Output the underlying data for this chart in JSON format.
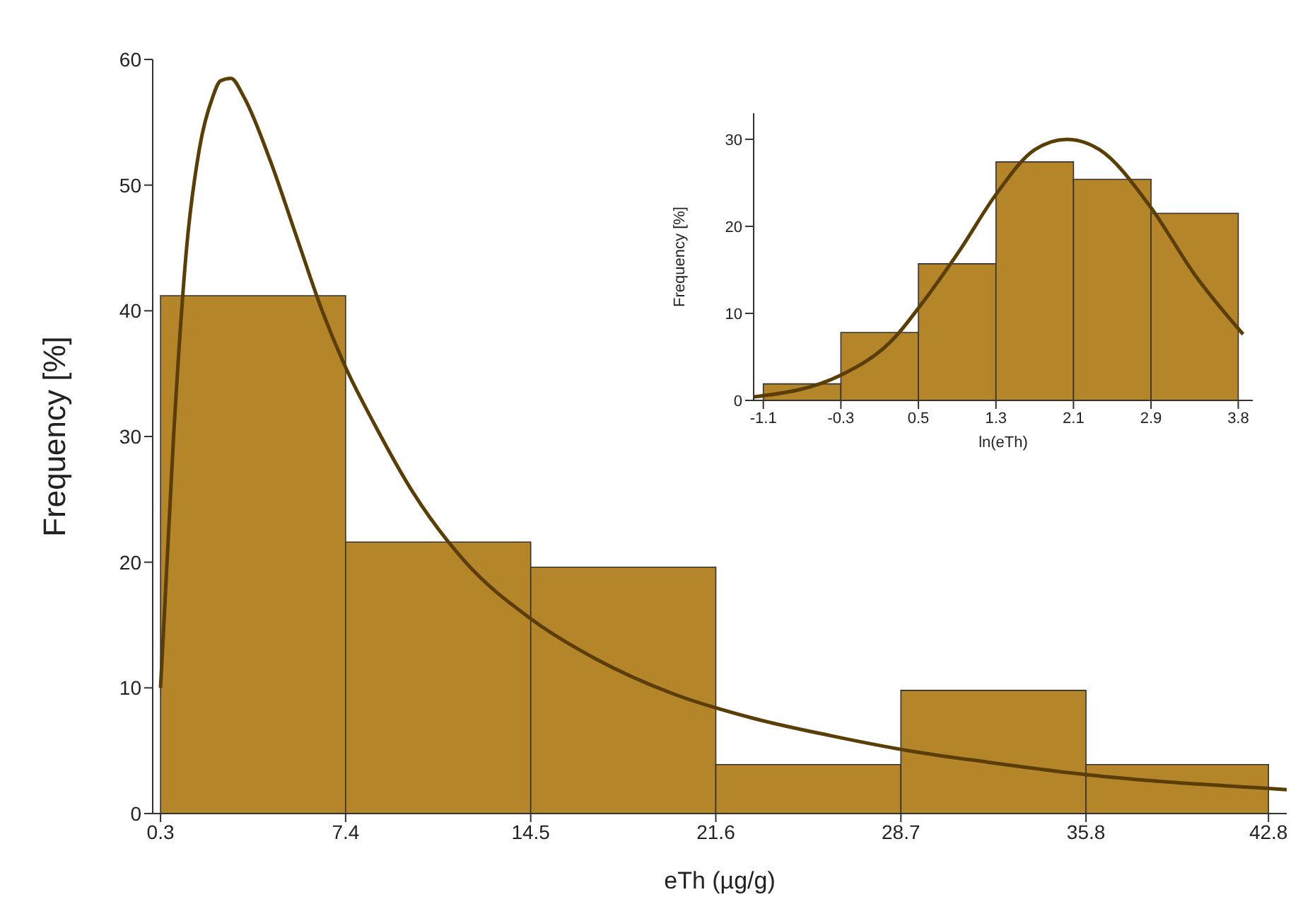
{
  "chart_data": [
    {
      "type": "histogram",
      "xlabel": "eTh (µg/g)",
      "ylabel": "Frequency [%]",
      "bins": [
        0.3,
        7.4,
        14.5,
        21.6,
        28.7,
        35.8,
        42.8
      ],
      "values": [
        41.2,
        21.6,
        19.6,
        3.9,
        9.8,
        3.9
      ],
      "color": "#b5852a",
      "xlim": [
        0,
        43.5
      ],
      "ylim": [
        0,
        60
      ],
      "xticks": [
        0.3,
        7.4,
        14.5,
        21.6,
        28.7,
        35.8,
        42.8
      ],
      "yticks": [
        0,
        10,
        20,
        30,
        40,
        50,
        60
      ],
      "series": [
        {
          "type": "line",
          "color": "#5a3e05",
          "x": [
            0.3,
            0.8,
            1.3,
            1.8,
            2.3,
            2.6,
            3.0,
            3.5,
            4.5,
            5.5,
            6.5,
            7.4,
            8.5,
            10,
            12,
            14.5,
            17,
            20,
            23,
            26,
            29,
            32,
            35.8,
            39,
            42.8,
            43.5
          ],
          "values": [
            10,
            30,
            45,
            53,
            57,
            58.3,
            58.5,
            57,
            52,
            46,
            40,
            35.5,
            31,
            25.5,
            20,
            15.5,
            12.3,
            9.5,
            7.6,
            6.2,
            5,
            4.1,
            3.1,
            2.5,
            2,
            1.9
          ]
        }
      ]
    },
    {
      "type": "histogram",
      "xlabel": "ln(eTh)",
      "ylabel": "Frequency [%]",
      "bins": [
        -1.1,
        -0.3,
        0.5,
        1.3,
        2.1,
        2.9,
        3.8
      ],
      "values": [
        1.9,
        7.8,
        15.7,
        27.4,
        25.4,
        21.5
      ],
      "color": "#b5852a",
      "xlim": [
        -1.2,
        3.95
      ],
      "ylim": [
        0,
        33
      ],
      "xticks": [
        -1.1,
        -0.3,
        0.5,
        1.3,
        2.1,
        2.9,
        3.8
      ],
      "yticks": [
        0,
        10,
        20,
        30
      ],
      "series": [
        {
          "type": "line",
          "color": "#5a3e05",
          "x": [
            -1.2,
            -0.3,
            0.27,
            0.5,
            0.93,
            1.29,
            1.7,
            2.03,
            2.37,
            2.89,
            3.36,
            3.85
          ],
          "values": [
            0.4,
            2.9,
            7.4,
            10.6,
            17.3,
            23.5,
            28.8,
            30,
            28.8,
            22.3,
            14.3,
            7.6
          ]
        }
      ]
    }
  ]
}
